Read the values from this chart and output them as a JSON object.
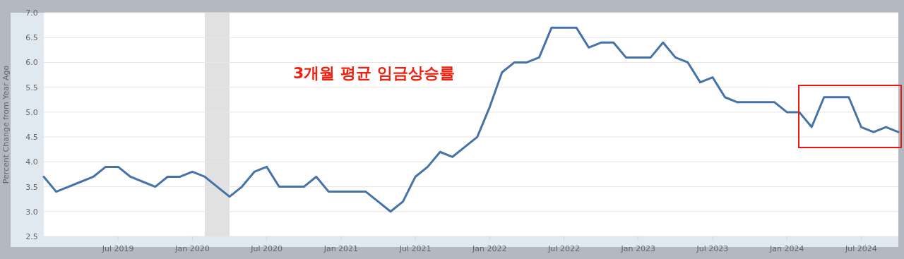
{
  "chart_data": {
    "type": "line",
    "ylabel": "Percent Change from Year Ago",
    "annotations": [
      "3개월 평균 임금상승률"
    ],
    "x": [
      "2019-01",
      "2019-02",
      "2019-03",
      "2019-04",
      "2019-05",
      "2019-06",
      "2019-07",
      "2019-08",
      "2019-09",
      "2019-10",
      "2019-11",
      "2019-12",
      "2020-01",
      "2020-02",
      "2020-03",
      "2020-04",
      "2020-05",
      "2020-06",
      "2020-07",
      "2020-08",
      "2020-09",
      "2020-10",
      "2020-11",
      "2020-12",
      "2021-01",
      "2021-02",
      "2021-03",
      "2021-04",
      "2021-05",
      "2021-06",
      "2021-07",
      "2021-08",
      "2021-09",
      "2021-10",
      "2021-11",
      "2021-12",
      "2022-01",
      "2022-02",
      "2022-03",
      "2022-04",
      "2022-05",
      "2022-06",
      "2022-07",
      "2022-08",
      "2022-09",
      "2022-10",
      "2022-11",
      "2022-12",
      "2023-01",
      "2023-02",
      "2023-03",
      "2023-04",
      "2023-05",
      "2023-06",
      "2023-07",
      "2023-08",
      "2023-09",
      "2023-10",
      "2023-11",
      "2023-12",
      "2024-01",
      "2024-02",
      "2024-03",
      "2024-04",
      "2024-05",
      "2024-06",
      "2024-07",
      "2024-08",
      "2024-09",
      "2024-10"
    ],
    "series": [
      {
        "color": "#4572a7",
        "values": [
          3.7,
          3.4,
          3.5,
          3.6,
          3.7,
          3.9,
          3.9,
          3.7,
          3.6,
          3.5,
          3.7,
          3.7,
          3.8,
          3.7,
          3.5,
          3.3,
          3.5,
          3.8,
          3.9,
          3.5,
          3.5,
          3.5,
          3.7,
          3.4,
          3.4,
          3.4,
          3.4,
          3.2,
          3.0,
          3.2,
          3.7,
          3.9,
          4.2,
          4.1,
          4.3,
          4.5,
          5.1,
          5.8,
          6.0,
          6.0,
          6.1,
          6.7,
          6.7,
          6.7,
          6.3,
          6.4,
          6.4,
          6.1,
          6.1,
          6.1,
          6.4,
          6.1,
          6.0,
          5.6,
          5.7,
          5.3,
          5.2,
          5.2,
          5.2,
          5.2,
          5.0,
          5.0,
          4.7,
          5.3,
          5.3,
          5.3,
          4.7,
          4.6,
          4.7,
          4.6
        ]
      }
    ],
    "xlim": [
      "2019-01",
      "2024-10"
    ],
    "xticks": [
      {
        "value": "2019-07",
        "label": "Jul 2019"
      },
      {
        "value": "2020-01",
        "label": "Jan 2020"
      },
      {
        "value": "2020-07",
        "label": "Jul 2020"
      },
      {
        "value": "2021-01",
        "label": "Jan 2021"
      },
      {
        "value": "2021-07",
        "label": "Jul 2021"
      },
      {
        "value": "2022-01",
        "label": "Jan 2022"
      },
      {
        "value": "2022-07",
        "label": "Jul 2022"
      },
      {
        "value": "2023-01",
        "label": "Jan 2023"
      },
      {
        "value": "2023-07",
        "label": "Jul 2023"
      },
      {
        "value": "2024-01",
        "label": "Jan 2024"
      },
      {
        "value": "2024-07",
        "label": "Jul 2024"
      }
    ],
    "ylim": [
      2.5,
      7.0
    ],
    "yticks": [
      {
        "value": 2.5,
        "label": "2.5"
      },
      {
        "value": 3,
        "label": "3.0"
      },
      {
        "value": 3.5,
        "label": "3.5"
      },
      {
        "value": 4,
        "label": "4.0"
      },
      {
        "value": 4.5,
        "label": "4.5"
      },
      {
        "value": 5,
        "label": "5.0"
      },
      {
        "value": 5.5,
        "label": "5.5"
      },
      {
        "value": 6,
        "label": "6.0"
      },
      {
        "value": 6.5,
        "label": "6.5"
      },
      {
        "value": 7,
        "label": "7.0"
      }
    ],
    "grid": "y",
    "bands": [
      {
        "axis": "x",
        "from": "2020-02",
        "to": "2020-04",
        "color": "#e1e1e1"
      }
    ]
  }
}
